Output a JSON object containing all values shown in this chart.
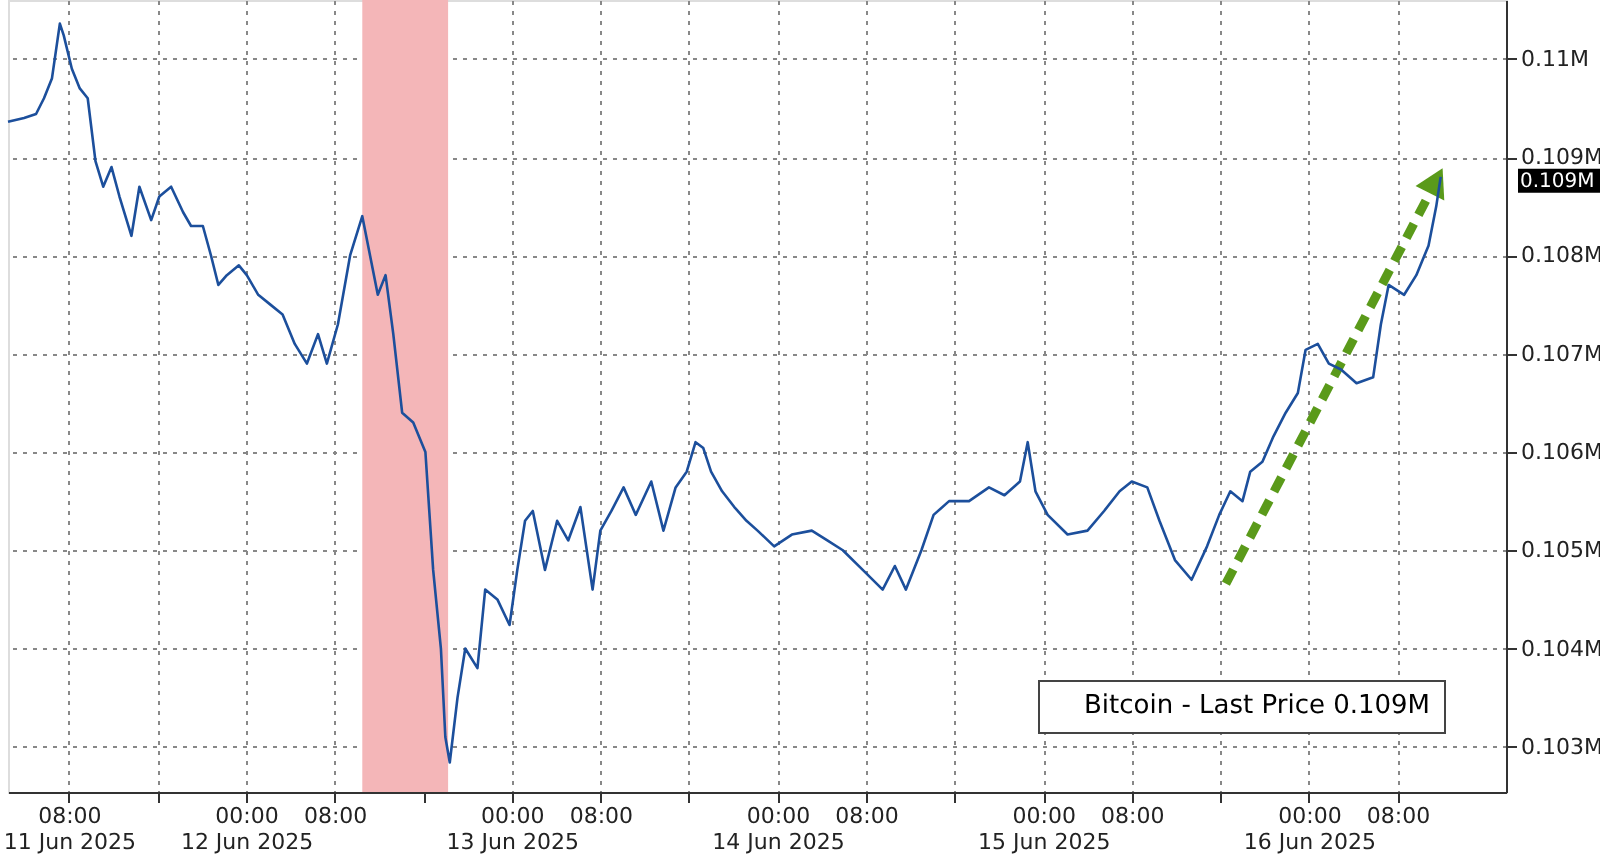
{
  "chart_data": {
    "type": "line",
    "xlim": [
      "2025-06-11T02:30",
      "2025-06-16T17:48"
    ],
    "xticks": [
      {
        "value": "2025-06-11T08:00",
        "label": "08:00\n11 Jun 2025"
      },
      {
        "value": "2025-06-11T16:00",
        "label": null
      },
      {
        "value": "2025-06-12T00:00",
        "label": "00:00\n12 Jun 2025"
      },
      {
        "value": "2025-06-12T08:00",
        "label": "08:00"
      },
      {
        "value": "2025-06-12T16:00",
        "label": null
      },
      {
        "value": "2025-06-13T00:00",
        "label": "00:00\n13 Jun 2025"
      },
      {
        "value": "2025-06-13T08:00",
        "label": "08:00"
      },
      {
        "value": "2025-06-13T16:00",
        "label": null
      },
      {
        "value": "2025-06-14T00:00",
        "label": "00:00\n14 Jun 2025"
      },
      {
        "value": "2025-06-14T08:00",
        "label": "08:00"
      },
      {
        "value": "2025-06-14T16:00",
        "label": null
      },
      {
        "value": "2025-06-15T00:00",
        "label": "00:00\n15 Jun 2025"
      },
      {
        "value": "2025-06-15T08:00",
        "label": "08:00"
      },
      {
        "value": "2025-06-15T16:00",
        "label": null
      },
      {
        "value": "2025-06-16T00:00",
        "label": "00:00\n16 Jun 2025"
      },
      {
        "value": "2025-06-16T08:00",
        "label": "08:00"
      }
    ],
    "ylim": [
      102540,
      110600
    ],
    "yticks": [
      {
        "value": 103000,
        "label": "0.103M"
      },
      {
        "value": 104000,
        "label": "0.104M"
      },
      {
        "value": 105000,
        "label": "0.105M"
      },
      {
        "value": 106000,
        "label": "0.106M"
      },
      {
        "value": 107000,
        "label": "0.107M"
      },
      {
        "value": 108000,
        "label": "0.108M"
      },
      {
        "value": 109000,
        "label": "0.109M"
      },
      {
        "value": 110000,
        "label": "0.11M"
      }
    ],
    "grid": true,
    "legend": "bottom right",
    "series": [
      {
        "name": "Bitcoin - Last Price 0.109M",
        "color": "#1c4f9c",
        "x": [
          "2025-06-11T02:30",
          "2025-06-11T03:57",
          "2025-06-11T05:02",
          "2025-06-11T05:45",
          "2025-06-11T06:28",
          "2025-06-11T07:11",
          "2025-06-11T07:32",
          "2025-06-11T08:16",
          "2025-06-11T08:59",
          "2025-06-11T09:42",
          "2025-06-11T10:24",
          "2025-06-11T11:06",
          "2025-06-11T11:51",
          "2025-06-11T12:34",
          "2025-06-11T13:39",
          "2025-06-11T14:22",
          "2025-06-11T15:26",
          "2025-06-11T16:10",
          "2025-06-11T17:14",
          "2025-06-11T18:19",
          "2025-06-11T19:02",
          "2025-06-11T20:06",
          "2025-06-11T20:50",
          "2025-06-11T21:30",
          "2025-06-11T22:16",
          "2025-06-11T23:21",
          "2025-06-12T00:04",
          "2025-06-12T01:06",
          "2025-06-12T02:12",
          "2025-06-12T03:18",
          "2025-06-12T04:24",
          "2025-06-12T05:30",
          "2025-06-12T06:30",
          "2025-06-12T07:18",
          "2025-06-12T08:18",
          "2025-06-12T09:24",
          "2025-06-12T10:30",
          "2025-06-12T11:12",
          "2025-06-12T11:54",
          "2025-06-12T12:36",
          "2025-06-12T13:18",
          "2025-06-12T14:06",
          "2025-06-12T15:06",
          "2025-06-12T16:12",
          "2025-06-12T16:54",
          "2025-06-12T17:36",
          "2025-06-12T18:00",
          "2025-06-12T18:24",
          "2025-06-12T19:06",
          "2025-06-12T19:48",
          "2025-06-12T20:54",
          "2025-06-12T21:36",
          "2025-06-12T22:42",
          "2025-06-12T23:48",
          "2025-06-13T00:30",
          "2025-06-13T01:12",
          "2025-06-13T01:54",
          "2025-06-13T03:00",
          "2025-06-13T04:06",
          "2025-06-13T05:06",
          "2025-06-13T06:12",
          "2025-06-13T07:18",
          "2025-06-13T08:00",
          "2025-06-13T09:00",
          "2025-06-13T10:06",
          "2025-06-13T11:12",
          "2025-06-13T12:36",
          "2025-06-13T13:42",
          "2025-06-13T14:48",
          "2025-06-13T15:48",
          "2025-06-13T16:36",
          "2025-06-13T17:18",
          "2025-06-13T18:00",
          "2025-06-13T19:00",
          "2025-06-13T20:06",
          "2025-06-13T21:12",
          "2025-06-13T22:12",
          "2025-06-13T23:42",
          "2025-06-14T01:18",
          "2025-06-14T03:06",
          "2025-06-14T04:30",
          "2025-06-14T05:54",
          "2025-06-14T07:42",
          "2025-06-14T09:30",
          "2025-06-14T10:36",
          "2025-06-14T11:36",
          "2025-06-14T13:00",
          "2025-06-14T14:06",
          "2025-06-14T15:30",
          "2025-06-14T17:18",
          "2025-06-14T19:06",
          "2025-06-14T20:30",
          "2025-06-14T21:54",
          "2025-06-14T22:36",
          "2025-06-14T23:18",
          "2025-06-15T00:24",
          "2025-06-15T02:12",
          "2025-06-15T04:00",
          "2025-06-15T05:30",
          "2025-06-15T06:54",
          "2025-06-15T08:00",
          "2025-06-15T09:24",
          "2025-06-15T10:30",
          "2025-06-15T11:54",
          "2025-06-15T13:24",
          "2025-06-15T14:48",
          "2025-06-15T15:54",
          "2025-06-15T16:54",
          "2025-06-15T18:00",
          "2025-06-15T18:42",
          "2025-06-15T19:48",
          "2025-06-15T20:48",
          "2025-06-15T21:54",
          "2025-06-15T23:00",
          "2025-06-15T23:42",
          "2025-06-16T00:48",
          "2025-06-16T01:48",
          "2025-06-16T02:54",
          "2025-06-16T04:18",
          "2025-06-16T05:48",
          "2025-06-16T06:30",
          "2025-06-16T07:12",
          "2025-06-16T08:36",
          "2025-06-16T09:42",
          "2025-06-16T10:48",
          "2025-06-16T11:30",
          "2025-06-16T11:54"
        ],
        "values": [
          109360,
          109400,
          109440,
          109600,
          109800,
          110360,
          110240,
          109900,
          109700,
          109600,
          108960,
          108700,
          108900,
          108600,
          108200,
          108700,
          108360,
          108600,
          108700,
          108440,
          108300,
          108300,
          108000,
          107700,
          107800,
          107900,
          107800,
          107600,
          107500,
          107400,
          107100,
          106900,
          107200,
          106900,
          107300,
          108000,
          108400,
          108000,
          107600,
          107800,
          107200,
          106400,
          106300,
          106000,
          104800,
          104000,
          103100,
          102840,
          103500,
          104000,
          103800,
          104600,
          104500,
          104240,
          104800,
          105300,
          105400,
          104800,
          105300,
          105100,
          105440,
          104600,
          105200,
          105400,
          105640,
          105360,
          105700,
          105200,
          105640,
          105800,
          106100,
          106040,
          105800,
          105600,
          105440,
          105300,
          105200,
          105040,
          105160,
          105200,
          105100,
          105000,
          104800,
          104600,
          104840,
          104600,
          105000,
          105360,
          105500,
          105500,
          105640,
          105560,
          105700,
          106100,
          105600,
          105360,
          105160,
          105200,
          105400,
          105600,
          105700,
          105640,
          105300,
          104900,
          104700,
          105040,
          105360,
          105600,
          105500,
          105800,
          105900,
          106160,
          106400,
          106600,
          107040,
          107100,
          106900,
          106840,
          106700,
          106760,
          107300,
          107700,
          107600,
          107800,
          108100,
          108500,
          108800
        ]
      },
      {
        "type": "line",
        "color": "#5a9a1a",
        "line_style": "dashed",
        "x": [
          "2025-06-15T16:30",
          "2025-06-16T11:30"
        ],
        "values": [
          104660,
          108760
        ]
      }
    ],
    "bands": [
      {
        "axis": "x",
        "from": "2025-06-12T10:30",
        "to": "2025-06-12T18:15",
        "color": "#f4b6b8"
      }
    ],
    "annotations": [
      "0.109M"
    ]
  }
}
